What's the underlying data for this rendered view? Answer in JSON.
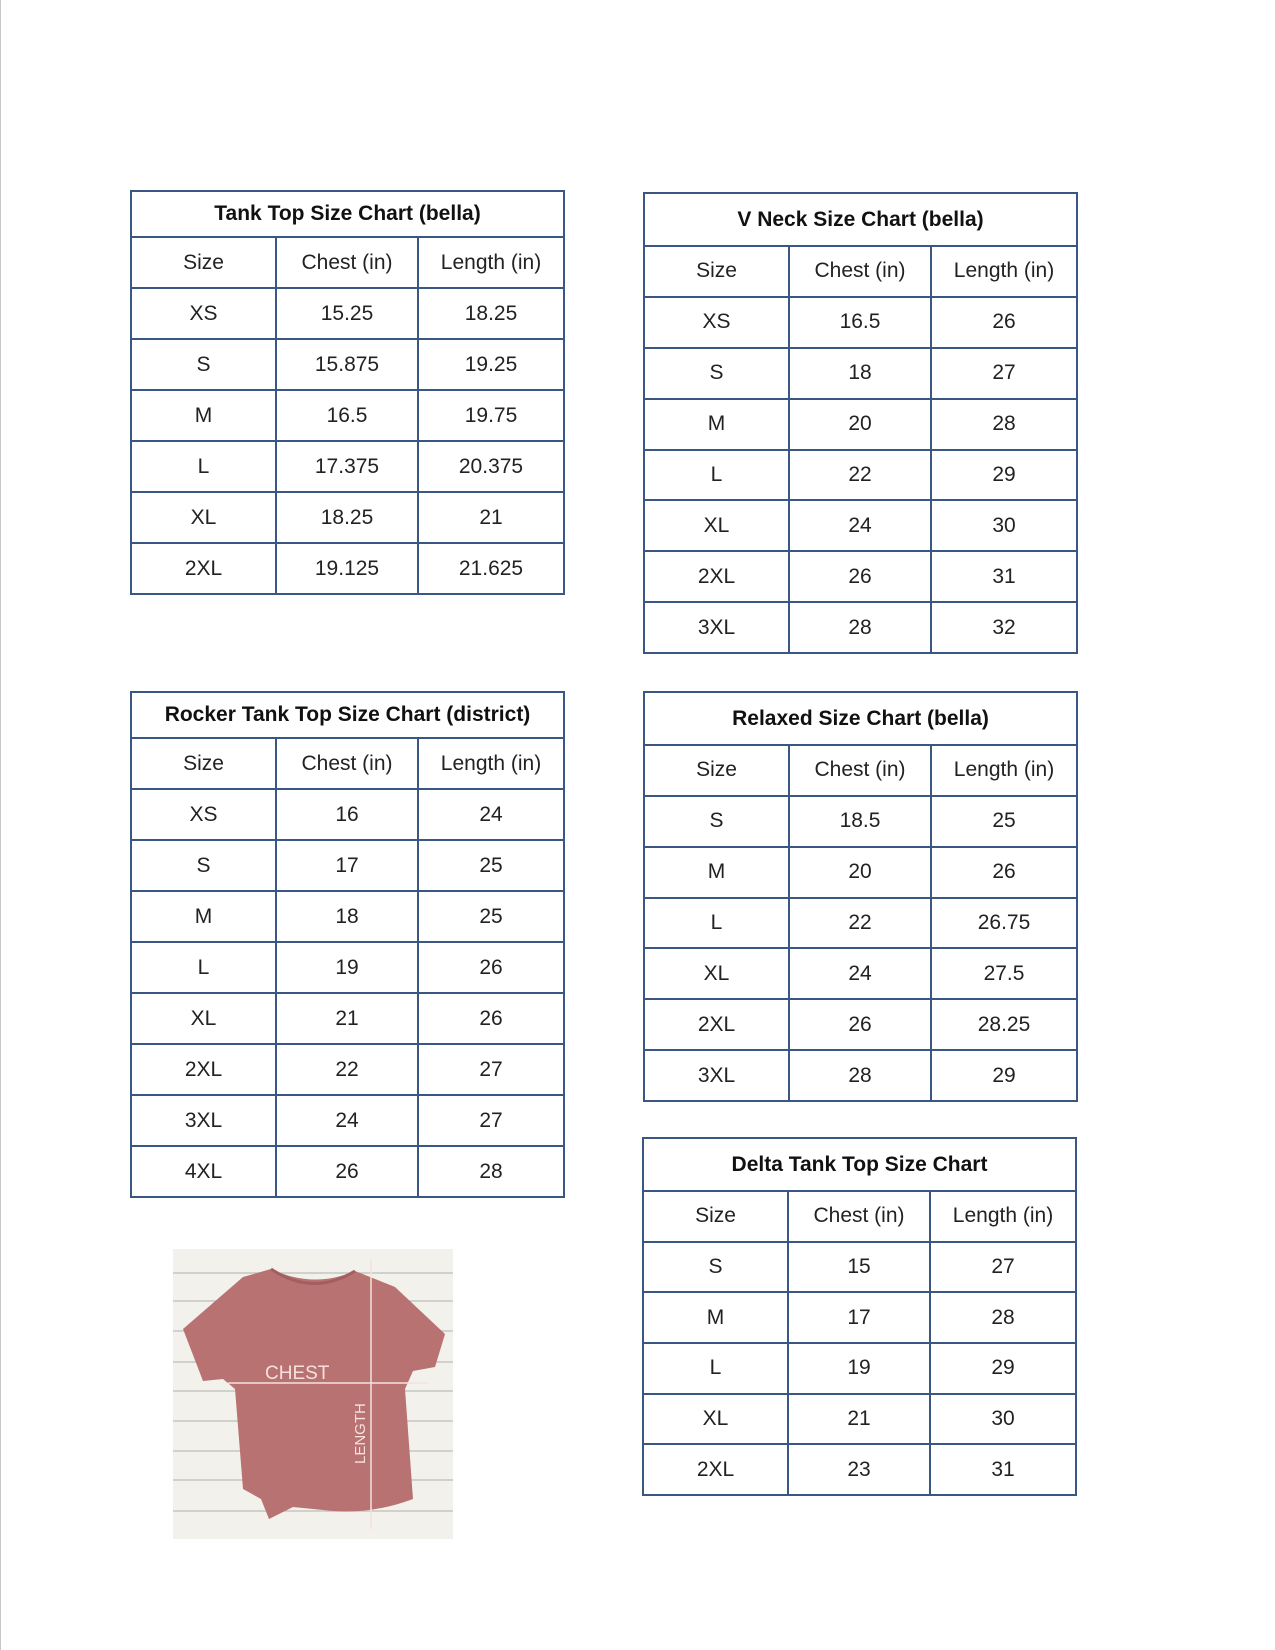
{
  "charts": [
    {
      "id": "tank-top",
      "title": "Tank Top Size Chart  (bella)",
      "headers": [
        "Size",
        "Chest (in)",
        "Length (in)"
      ],
      "rows": [
        [
          "XS",
          "15.25",
          "18.25"
        ],
        [
          "S",
          "15.875",
          "19.25"
        ],
        [
          "M",
          "16.5",
          "19.75"
        ],
        [
          "L",
          "17.375",
          "20.375"
        ],
        [
          "XL",
          "18.25",
          "21"
        ],
        [
          "2XL",
          "19.125",
          "21.625"
        ]
      ]
    },
    {
      "id": "v-neck",
      "title": "V Neck Size Chart  (bella)",
      "headers": [
        "Size",
        "Chest (in)",
        "Length (in)"
      ],
      "rows": [
        [
          "XS",
          "16.5",
          "26"
        ],
        [
          "S",
          "18",
          "27"
        ],
        [
          "M",
          "20",
          "28"
        ],
        [
          "L",
          "22",
          "29"
        ],
        [
          "XL",
          "24",
          "30"
        ],
        [
          "2XL",
          "26",
          "31"
        ],
        [
          "3XL",
          "28",
          "32"
        ]
      ]
    },
    {
      "id": "rocker-tank",
      "title": "Rocker Tank Top Size Chart (district)",
      "headers": [
        "Size",
        "Chest (in)",
        "Length (in)"
      ],
      "rows": [
        [
          "XS",
          "16",
          "24"
        ],
        [
          "S",
          "17",
          "25"
        ],
        [
          "M",
          "18",
          "25"
        ],
        [
          "L",
          "19",
          "26"
        ],
        [
          "XL",
          "21",
          "26"
        ],
        [
          "2XL",
          "22",
          "27"
        ],
        [
          "3XL",
          "24",
          "27"
        ],
        [
          "4XL",
          "26",
          "28"
        ]
      ]
    },
    {
      "id": "relaxed",
      "title": "Relaxed Size Chart (bella)",
      "headers": [
        "Size",
        "Chest (in)",
        "Length (in)"
      ],
      "rows": [
        [
          "S",
          "18.5",
          "25"
        ],
        [
          "M",
          "20",
          "26"
        ],
        [
          "L",
          "22",
          "26.75"
        ],
        [
          "XL",
          "24",
          "27.5"
        ],
        [
          "2XL",
          "26",
          "28.25"
        ],
        [
          "3XL",
          "28",
          "29"
        ]
      ]
    },
    {
      "id": "delta-tank",
      "title": "Delta Tank Top Size Chart",
      "headers": [
        "Size",
        "Chest (in)",
        "Length (in)"
      ],
      "rows": [
        [
          "S",
          "15",
          "27"
        ],
        [
          "M",
          "17",
          "28"
        ],
        [
          "L",
          "19",
          "29"
        ],
        [
          "XL",
          "21",
          "30"
        ],
        [
          "2XL",
          "23",
          "31"
        ]
      ]
    }
  ],
  "photo": {
    "chest_label": "CHEST",
    "length_label": "LENGTH"
  },
  "colors": {
    "border": "#3a5683",
    "shirt": "#b97272"
  }
}
